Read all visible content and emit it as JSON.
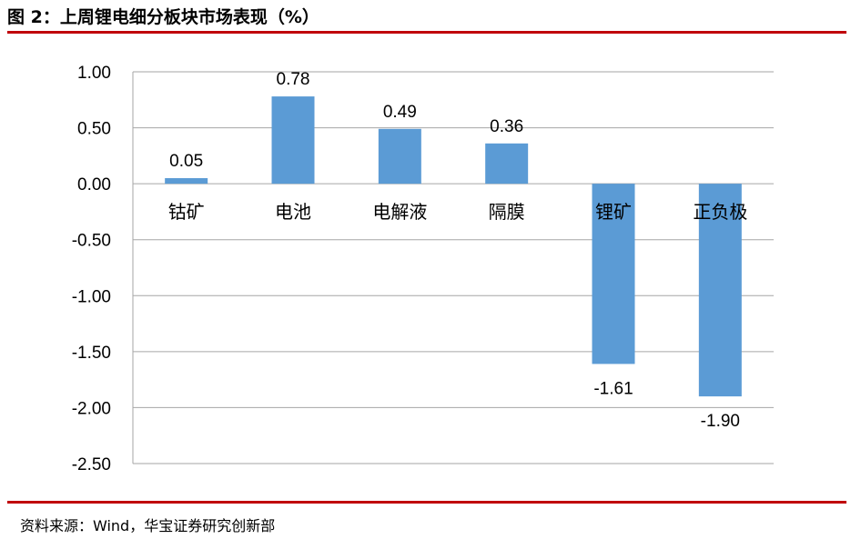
{
  "figure": {
    "title": "图 2：上周锂电细分板块市场表现（%）",
    "source": "资料来源：Wind，华宝证券研究创新部"
  },
  "colors": {
    "bar": "#5b9bd5",
    "rule": "#c0000a",
    "grid": "#a6a6a6"
  },
  "chart_data": {
    "type": "bar",
    "title": "",
    "xlabel": "",
    "ylabel": "",
    "categories": [
      "钴矿",
      "电池",
      "电解液",
      "隔膜",
      "锂矿",
      "正负极"
    ],
    "values": [
      0.05,
      0.78,
      0.49,
      0.36,
      -1.61,
      -1.9
    ],
    "value_labels": [
      "0.05",
      "0.78",
      "0.49",
      "0.36",
      "-1.61",
      "-1.90"
    ],
    "ylim": [
      -2.5,
      1.0
    ],
    "yticks": [
      1.0,
      0.5,
      0.0,
      -0.5,
      -1.0,
      -1.5,
      -2.0,
      -2.5
    ],
    "ytick_labels": [
      "1.00",
      "0.50",
      "0.00",
      "-0.50",
      "-1.00",
      "-1.50",
      "-2.00",
      "-2.50"
    ],
    "grid": true,
    "legend": "none"
  }
}
